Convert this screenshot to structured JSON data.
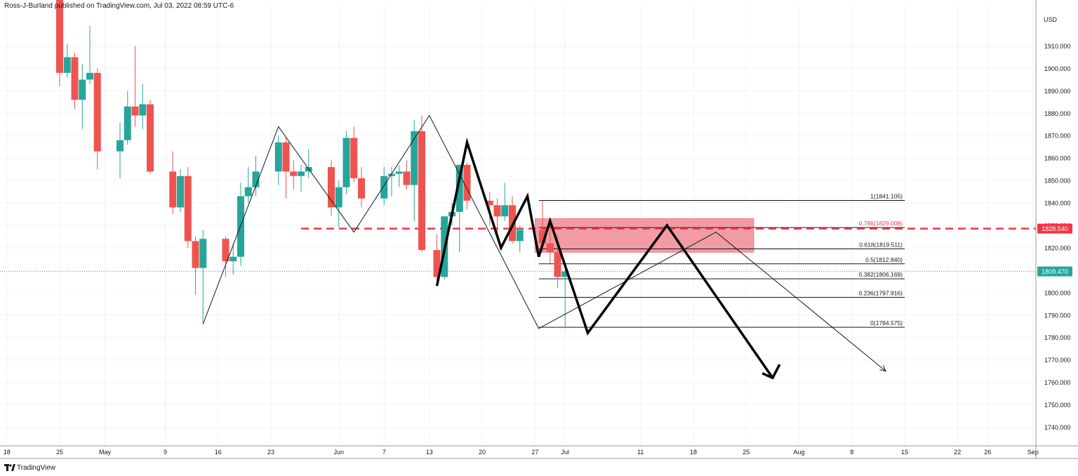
{
  "header": {
    "publisher_line": "Ross-J-Burland published on TradingView.com, Jul 03, 2022 08:59 UTC-6"
  },
  "footer": {
    "brand": "TradingView"
  },
  "colors": {
    "up": "#26a69a",
    "down": "#ef5350",
    "zone": "#f08a94",
    "price_tag": "#26a69a",
    "level_tag": "#f23645"
  },
  "chart_data": {
    "type": "candlestick",
    "currency_label": "USD",
    "ylim": [
      1732,
      1928
    ],
    "y_ticks": [
      1740,
      1750,
      1760,
      1770,
      1780,
      1790,
      1800,
      1810,
      1820,
      1830,
      1840,
      1850,
      1860,
      1870,
      1880,
      1890,
      1900,
      1910
    ],
    "y_tick_labels": [
      "1740.000",
      "1750.000",
      "1760.000",
      "1770.000",
      "1780.000",
      "1790.000",
      "1800.000",
      "1810.000",
      "1820.000",
      "1830.000",
      "1840.000",
      "1850.000",
      "1860.000",
      "1870.000",
      "1880.000",
      "1890.000",
      "1900.000",
      "1910.000"
    ],
    "x_ticks": [
      {
        "label": "18",
        "day": -8
      },
      {
        "label": "25",
        "day": -1
      },
      {
        "label": "May",
        "day": 5
      },
      {
        "label": "9",
        "day": 13
      },
      {
        "label": "16",
        "day": 20
      },
      {
        "label": "23",
        "day": 27
      },
      {
        "label": "Jun",
        "day": 36
      },
      {
        "label": "7",
        "day": 42
      },
      {
        "label": "13",
        "day": 48
      },
      {
        "label": "20",
        "day": 55
      },
      {
        "label": "27",
        "day": 62
      },
      {
        "label": "Jul",
        "day": 66
      },
      {
        "label": "11",
        "day": 76
      },
      {
        "label": "18",
        "day": 83
      },
      {
        "label": "25",
        "day": 90
      },
      {
        "label": "Aug",
        "day": 97
      },
      {
        "label": "8",
        "day": 104
      },
      {
        "label": "15",
        "day": 111
      },
      {
        "label": "22",
        "day": 118
      },
      {
        "label": "26",
        "day": 122
      },
      {
        "label": "Sep",
        "day": 128
      }
    ],
    "candles": [
      {
        "day": -1,
        "o": 1937,
        "h": 1940,
        "l": 1892,
        "c": 1898
      },
      {
        "day": 0,
        "o": 1898,
        "h": 1911,
        "l": 1896,
        "c": 1905
      },
      {
        "day": 1,
        "o": 1905,
        "h": 1907,
        "l": 1882,
        "c": 1886
      },
      {
        "day": 2,
        "o": 1886,
        "h": 1902,
        "l": 1873,
        "c": 1895
      },
      {
        "day": 3,
        "o": 1895,
        "h": 1919,
        "l": 1893,
        "c": 1898
      },
      {
        "day": 4,
        "o": 1898,
        "h": 1900,
        "l": 1855,
        "c": 1863
      },
      {
        "day": 7,
        "o": 1863,
        "h": 1876,
        "l": 1851,
        "c": 1868
      },
      {
        "day": 8,
        "o": 1868,
        "h": 1890,
        "l": 1866,
        "c": 1883
      },
      {
        "day": 9,
        "o": 1883,
        "h": 1910,
        "l": 1874,
        "c": 1879
      },
      {
        "day": 10,
        "o": 1879,
        "h": 1893,
        "l": 1873,
        "c": 1884
      },
      {
        "day": 11,
        "o": 1884,
        "h": 1886,
        "l": 1853,
        "c": 1854
      },
      {
        "day": 14,
        "o": 1854,
        "h": 1863,
        "l": 1835,
        "c": 1838
      },
      {
        "day": 15,
        "o": 1838,
        "h": 1855,
        "l": 1836,
        "c": 1852
      },
      {
        "day": 16,
        "o": 1852,
        "h": 1856,
        "l": 1820,
        "c": 1823
      },
      {
        "day": 17,
        "o": 1823,
        "h": 1825,
        "l": 1799,
        "c": 1811
      },
      {
        "day": 18,
        "o": 1811,
        "h": 1828,
        "l": 1786,
        "c": 1824
      },
      {
        "day": 21,
        "o": 1824,
        "h": 1825,
        "l": 1807,
        "c": 1814
      },
      {
        "day": 22,
        "o": 1814,
        "h": 1822,
        "l": 1808,
        "c": 1816
      },
      {
        "day": 23,
        "o": 1816,
        "h": 1849,
        "l": 1812,
        "c": 1843
      },
      {
        "day": 24,
        "o": 1843,
        "h": 1856,
        "l": 1840,
        "c": 1847
      },
      {
        "day": 25,
        "o": 1847,
        "h": 1861,
        "l": 1843,
        "c": 1854
      },
      {
        "day": 28,
        "o": 1854,
        "h": 1870,
        "l": 1848,
        "c": 1867
      },
      {
        "day": 29,
        "o": 1867,
        "h": 1869,
        "l": 1842,
        "c": 1854
      },
      {
        "day": 30,
        "o": 1854,
        "h": 1859,
        "l": 1846,
        "c": 1852
      },
      {
        "day": 31,
        "o": 1852,
        "h": 1857,
        "l": 1845,
        "c": 1854
      },
      {
        "day": 32,
        "o": 1854,
        "h": 1864,
        "l": 1851,
        "c": 1856
      },
      {
        "day": 35,
        "o": 1856,
        "h": 1859,
        "l": 1834,
        "c": 1838
      },
      {
        "day": 36,
        "o": 1838,
        "h": 1850,
        "l": 1829,
        "c": 1847
      },
      {
        "day": 37,
        "o": 1847,
        "h": 1872,
        "l": 1844,
        "c": 1869
      },
      {
        "day": 38,
        "o": 1869,
        "h": 1874,
        "l": 1849,
        "c": 1851
      },
      {
        "day": 39,
        "o": 1851,
        "h": 1856,
        "l": 1838,
        "c": 1842
      },
      {
        "day": 42,
        "o": 1842,
        "h": 1856,
        "l": 1839,
        "c": 1852
      },
      {
        "day": 43,
        "o": 1852,
        "h": 1856,
        "l": 1843,
        "c": 1853
      },
      {
        "day": 44,
        "o": 1853,
        "h": 1857,
        "l": 1847,
        "c": 1854
      },
      {
        "day": 45,
        "o": 1854,
        "h": 1859,
        "l": 1846,
        "c": 1848
      },
      {
        "day": 46,
        "o": 1848,
        "h": 1877,
        "l": 1832,
        "c": 1872
      },
      {
        "day": 47,
        "o": 1872,
        "h": 1879,
        "l": 1818,
        "c": 1819
      },
      {
        "day": 49,
        "o": 1819,
        "h": 1826,
        "l": 1805,
        "c": 1807
      },
      {
        "day": 50,
        "o": 1807,
        "h": 1834,
        "l": 1806,
        "c": 1834
      },
      {
        "day": 51,
        "o": 1834,
        "h": 1840,
        "l": 1830,
        "c": 1836
      },
      {
        "day": 52,
        "o": 1836,
        "h": 1857,
        "l": 1818,
        "c": 1857
      },
      {
        "day": 53,
        "o": 1857,
        "h": 1858,
        "l": 1837,
        "c": 1841
      },
      {
        "day": 56,
        "o": 1841,
        "h": 1845,
        "l": 1830,
        "c": 1839
      },
      {
        "day": 57,
        "o": 1839,
        "h": 1842,
        "l": 1825,
        "c": 1834
      },
      {
        "day": 58,
        "o": 1834,
        "h": 1849,
        "l": 1832,
        "c": 1839
      },
      {
        "day": 59,
        "o": 1839,
        "h": 1843,
        "l": 1822,
        "c": 1823
      },
      {
        "day": 60,
        "o": 1823,
        "h": 1830,
        "l": 1818,
        "c": 1828
      },
      {
        "day": 63,
        "o": 1828,
        "h": 1841,
        "l": 1818,
        "c": 1822
      },
      {
        "day": 64,
        "o": 1822,
        "h": 1833,
        "l": 1813,
        "c": 1818
      },
      {
        "day": 65,
        "o": 1818,
        "h": 1826,
        "l": 1802,
        "c": 1807
      },
      {
        "day": 66,
        "o": 1807,
        "h": 1811,
        "l": 1784,
        "c": 1809.47
      }
    ],
    "price_line": {
      "value": 1809.47,
      "label": "1809.470"
    },
    "resistance_line": {
      "value": 1828.54,
      "label": "1828.540",
      "from_day": 31
    },
    "fib_levels": [
      {
        "value": 1841.105,
        "label": "1(1841.105)",
        "highlight": false
      },
      {
        "value": 1829.008,
        "label": "0.786(1829.008)",
        "highlight": true
      },
      {
        "value": 1819.511,
        "label": "0.618(1819.511)",
        "highlight": false
      },
      {
        "value": 1812.84,
        "label": "0.5(1812.840)",
        "highlight": false
      },
      {
        "value": 1806.169,
        "label": "0.382(1806.169)",
        "highlight": false
      },
      {
        "value": 1797.916,
        "label": "0.236(1797.916)",
        "highlight": false
      },
      {
        "value": 1784.575,
        "label": "0(1784.575)",
        "highlight": false
      }
    ],
    "fib_start_day": 62.5,
    "fib_end_day": 111,
    "zone": {
      "from_day": 62,
      "to_day": 91,
      "low": 1818,
      "high": 1833
    },
    "thin_pattern": [
      {
        "day": 18,
        "v": 1786
      },
      {
        "day": 28,
        "v": 1874
      },
      {
        "day": 38,
        "v": 1827
      },
      {
        "day": 48,
        "v": 1879
      },
      {
        "day": 62.5,
        "v": 1784
      },
      {
        "day": 86,
        "v": 1827
      },
      {
        "day": 108.5,
        "v": 1765
      }
    ],
    "bold_pattern": [
      {
        "day": 49,
        "v": 1803
      },
      {
        "day": 53,
        "v": 1867
      },
      {
        "day": 57.5,
        "v": 1820
      },
      {
        "day": 61,
        "v": 1843
      },
      {
        "day": 62.5,
        "v": 1816
      },
      {
        "day": 64,
        "v": 1832
      },
      {
        "day": 69,
        "v": 1782
      },
      {
        "day": 79.5,
        "v": 1830
      },
      {
        "day": 93.5,
        "v": 1762
      }
    ]
  }
}
